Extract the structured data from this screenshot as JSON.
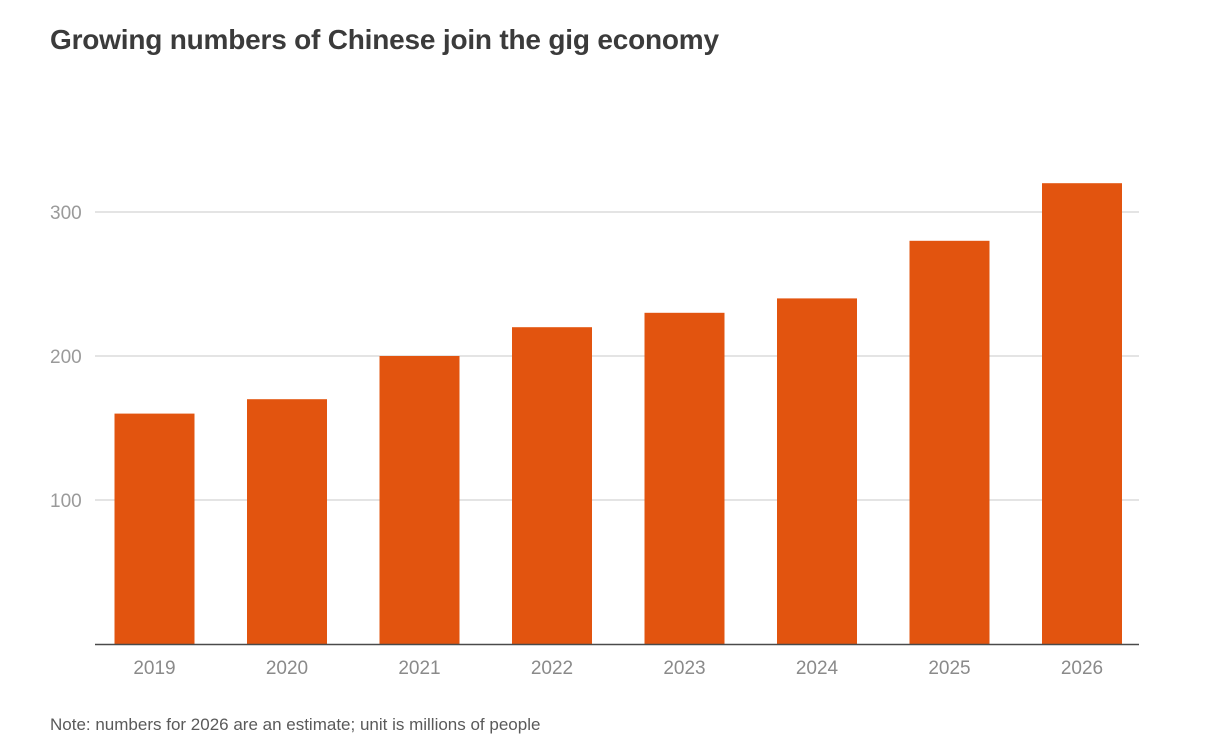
{
  "chart_data": {
    "type": "bar",
    "title": "Growing numbers of Chinese join the gig economy",
    "categories": [
      "2019",
      "2020",
      "2021",
      "2022",
      "2023",
      "2024",
      "2025",
      "2026"
    ],
    "values": [
      160,
      170,
      200,
      220,
      230,
      240,
      280,
      320
    ],
    "y_ticks": [
      "100",
      "200",
      "300"
    ],
    "y_tick_values": [
      100,
      200,
      300
    ],
    "ylim": [
      0,
      330
    ],
    "grid": true,
    "bar_color": "#e2540f",
    "note": "Note: numbers for 2026 are an estimate; unit is millions of people"
  }
}
